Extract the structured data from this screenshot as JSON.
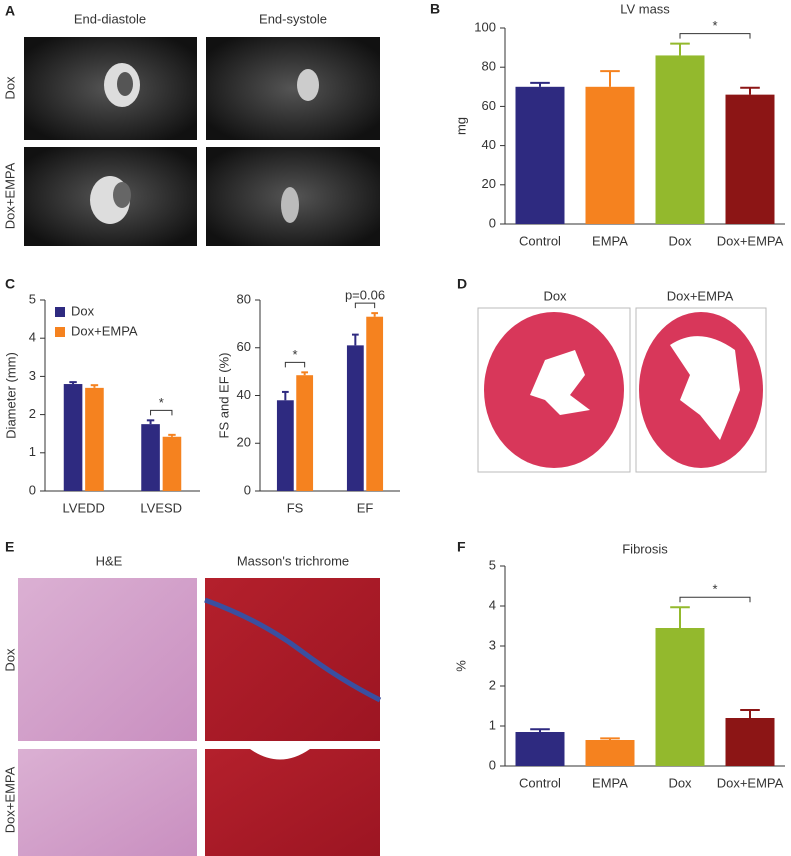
{
  "chart_data": [
    {
      "type": "bar",
      "panel": "B",
      "title": "LV mass",
      "ylabel": "mg",
      "categories": [
        "Control",
        "EMPA",
        "Dox",
        "Dox+EMPA"
      ],
      "values": [
        70,
        70,
        86,
        66
      ],
      "errors": [
        2,
        8,
        6,
        3.5
      ],
      "colors": [
        "#2e2a80",
        "#f5821f",
        "#93b92d",
        "#8c1515"
      ],
      "ylim": [
        0,
        100
      ],
      "yticks": [
        0,
        20,
        40,
        60,
        80,
        100
      ],
      "annotations": [
        {
          "text": "*",
          "categories": [
            "Dox",
            "Dox+EMPA"
          ]
        }
      ]
    },
    {
      "type": "bar",
      "panel": "C",
      "ylabel": "Diameter (mm)",
      "categories": [
        "LVEDD",
        "LVESD"
      ],
      "series": [
        {
          "name": "Dox",
          "color": "#2e2a80",
          "values": [
            2.8,
            1.75
          ],
          "errors": [
            0.05,
            0.1
          ]
        },
        {
          "name": "Dox+EMPA",
          "color": "#f5821f",
          "values": [
            2.7,
            1.42
          ],
          "errors": [
            0.07,
            0.05
          ]
        }
      ],
      "ylim": [
        0,
        5
      ],
      "yticks": [
        0,
        1,
        2,
        3,
        4,
        5
      ],
      "legend": "upper left",
      "annotations": [
        {
          "text": "*",
          "category": "LVESD"
        }
      ]
    },
    {
      "type": "bar",
      "ylabel": "FS and EF (%)",
      "categories": [
        "FS",
        "EF"
      ],
      "series": [
        {
          "color": "#2e2a80",
          "values": [
            38,
            61
          ],
          "errors": [
            3.5,
            4.5
          ]
        },
        {
          "color": "#f5821f",
          "values": [
            48.5,
            73
          ],
          "errors": [
            1.2,
            1.5
          ]
        }
      ],
      "ylim": [
        0,
        80
      ],
      "yticks": [
        0,
        20,
        40,
        60,
        80
      ],
      "annotations": [
        {
          "text": "*",
          "category": "FS"
        },
        {
          "text": "p=0.06",
          "category": "EF"
        }
      ]
    },
    {
      "type": "bar",
      "panel": "F",
      "title": "Fibrosis",
      "ylabel": "%",
      "categories": [
        "Control",
        "EMPA",
        "Dox",
        "Dox+EMPA"
      ],
      "values": [
        0.85,
        0.65,
        3.45,
        1.2
      ],
      "errors": [
        0.07,
        0.04,
        0.52,
        0.2
      ],
      "colors": [
        "#2e2a80",
        "#f5821f",
        "#93b92d",
        "#8c1515"
      ],
      "ylim": [
        0,
        5
      ],
      "yticks": [
        0,
        1,
        2,
        3,
        4,
        5
      ],
      "annotations": [
        {
          "text": "*",
          "categories": [
            "Dox",
            "Dox+EMPA"
          ]
        }
      ]
    }
  ],
  "images": {
    "A": {
      "letter": "A",
      "columns": [
        "End-diastole",
        "End-systole"
      ],
      "rows": [
        "Dox",
        "Dox+EMPA"
      ]
    },
    "D": {
      "letter": "D",
      "columns": [
        "Dox",
        "Dox+EMPA"
      ]
    },
    "E": {
      "letter": "E",
      "columns": [
        "H&E",
        "Masson's trichrome"
      ],
      "rows": [
        "Dox",
        "Dox+EMPA"
      ]
    }
  }
}
